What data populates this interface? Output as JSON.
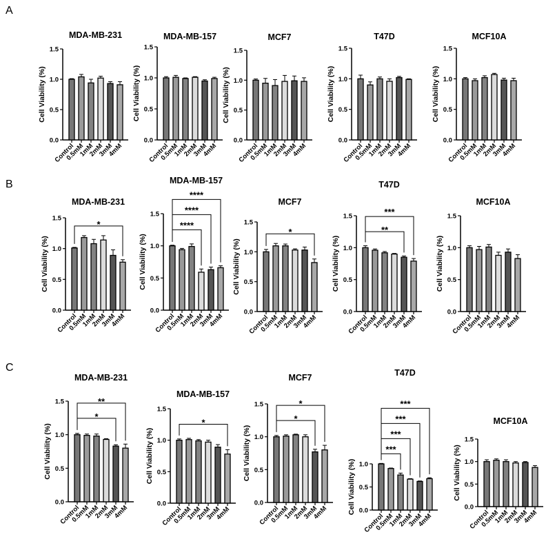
{
  "panel_labels": [
    "A",
    "B",
    "C"
  ],
  "colors": {
    "bars": [
      "#777777",
      "#9a9a9a",
      "#828282",
      "#dcdcdc",
      "#555555",
      "#a8a8a8"
    ],
    "axis": "#000000"
  },
  "chart_data": [
    {
      "type": "bar",
      "row": "A",
      "title": "MDA-MB-231",
      "ylabel": "Cell Viability (%)",
      "categories": [
        "Control",
        "0.5mM",
        "1mM",
        "2mM",
        "3mM",
        "4mM"
      ],
      "values": [
        1.0,
        1.04,
        0.94,
        1.02,
        0.93,
        0.91
      ],
      "errors": [
        0.01,
        0.04,
        0.06,
        0.03,
        0.03,
        0.05
      ],
      "ylim": [
        0,
        1.5
      ],
      "yticks": [
        "0.0",
        "0.5",
        "1.0",
        "1.5"
      ],
      "significance": []
    },
    {
      "type": "bar",
      "row": "A",
      "title": "MDA-MB-157",
      "ylabel": "Cell Viability (%)",
      "categories": [
        "Control",
        "0.5mM",
        "1mM",
        "2mM",
        "3mM",
        "4mM"
      ],
      "values": [
        1.0,
        1.01,
        0.99,
        1.01,
        0.95,
        0.99
      ],
      "errors": [
        0.02,
        0.03,
        0.01,
        0.01,
        0.02,
        0.02
      ],
      "ylim": [
        0,
        1.5
      ],
      "yticks": [
        "0.0",
        "0.5",
        "1.0",
        "1.5"
      ],
      "significance": []
    },
    {
      "type": "bar",
      "row": "A",
      "title": "MCF7",
      "ylabel": "Cell Viability (%)",
      "categories": [
        "Control",
        "0.5mM",
        "1mM",
        "2mM",
        "3mM",
        "4mM"
      ],
      "values": [
        1.0,
        0.95,
        0.91,
        0.98,
        0.99,
        0.98
      ],
      "errors": [
        0.02,
        0.08,
        0.1,
        0.1,
        0.08,
        0.06
      ],
      "ylim": [
        0,
        1.5
      ],
      "yticks": [
        "0.0",
        "0.5",
        "1.0",
        "1.5"
      ],
      "significance": []
    },
    {
      "type": "bar",
      "row": "A",
      "title": "T47D",
      "ylabel": "Cell Viability (%)",
      "categories": [
        "Control",
        "0.5mM",
        "1mM",
        "2mM",
        "3mM",
        "4mM"
      ],
      "values": [
        1.0,
        0.9,
        1.0,
        0.96,
        1.02,
        0.99
      ],
      "errors": [
        0.06,
        0.05,
        0.03,
        0.04,
        0.02,
        0.01
      ],
      "ylim": [
        0,
        1.5
      ],
      "yticks": [
        "0.0",
        "0.5",
        "1.0",
        "1.5"
      ],
      "significance": []
    },
    {
      "type": "bar",
      "row": "A",
      "title": "MCF10A",
      "ylabel": "Cell Viability (%)",
      "categories": [
        "Control",
        "0.5mM",
        "1mM",
        "2mM",
        "3mM",
        "4mM"
      ],
      "values": [
        1.0,
        0.97,
        1.02,
        1.07,
        0.98,
        0.97
      ],
      "errors": [
        0.02,
        0.03,
        0.03,
        0.02,
        0.03,
        0.04
      ],
      "ylim": [
        0,
        1.5
      ],
      "yticks": [
        "0.0",
        "0.5",
        "1.0",
        "1.5"
      ],
      "significance": []
    },
    {
      "type": "bar",
      "row": "B",
      "title": "MDA-MB-231",
      "ylabel": "Cell Viability (%)",
      "categories": [
        "Control",
        "0.5mM",
        "1mM",
        "2mM",
        "3mM",
        "4mM"
      ],
      "values": [
        1.01,
        1.18,
        1.08,
        1.14,
        0.89,
        0.78
      ],
      "errors": [
        0.01,
        0.03,
        0.07,
        0.07,
        0.09,
        0.04
      ],
      "ylim": [
        0,
        1.5
      ],
      "yticks": [
        "0.0",
        "0.5",
        "1.0",
        "1.5"
      ],
      "significance": [
        {
          "from": "Control",
          "to": "4mM",
          "label": "*"
        }
      ]
    },
    {
      "type": "bar",
      "row": "B",
      "title": "MDA-MB-157",
      "ylabel": "Cell Viability (%)",
      "categories": [
        "Control",
        "0.5mM",
        "1mM",
        "2mM",
        "3mM",
        "4mM"
      ],
      "values": [
        1.0,
        0.94,
        0.99,
        0.59,
        0.63,
        0.66
      ],
      "errors": [
        0.01,
        0.02,
        0.04,
        0.05,
        0.04,
        0.03
      ],
      "ylim": [
        0,
        1.5
      ],
      "yticks": [
        "0.0",
        "0.5",
        "1.0",
        "1.5"
      ],
      "significance": [
        {
          "from": "Control",
          "to": "2mM",
          "label": "****"
        },
        {
          "from": "Control",
          "to": "3mM",
          "label": "****"
        },
        {
          "from": "Control",
          "to": "4mM",
          "label": "****"
        }
      ]
    },
    {
      "type": "bar",
      "row": "B",
      "title": "MCF7",
      "ylabel": "Cell Viability (%)",
      "categories": [
        "Control",
        "0.5mM",
        "1mM",
        "2mM",
        "3mM",
        "4mM"
      ],
      "values": [
        1.0,
        1.1,
        1.1,
        1.03,
        1.03,
        0.82
      ],
      "errors": [
        0.04,
        0.04,
        0.03,
        0.02,
        0.05,
        0.06
      ],
      "ylim": [
        0,
        1.5
      ],
      "yticks": [
        "0.0",
        "0.5",
        "1.0",
        "1.5"
      ],
      "significance": [
        {
          "from": "Control",
          "to": "4mM",
          "label": "*"
        }
      ]
    },
    {
      "type": "bar",
      "row": "B",
      "title": "T47D",
      "ylabel": "Cell Viability (%)",
      "categories": [
        "Control",
        "0.5mM",
        "1mM",
        "2mM",
        "3mM",
        "4mM"
      ],
      "values": [
        1.0,
        0.96,
        0.92,
        0.9,
        0.85,
        0.79
      ],
      "errors": [
        0.03,
        0.02,
        0.02,
        0.01,
        0.02,
        0.04
      ],
      "ylim": [
        0,
        1.5
      ],
      "yticks": [
        "0.0",
        "0.5",
        "1.0",
        "1.5"
      ],
      "significance": [
        {
          "from": "Control",
          "to": "3mM",
          "label": "**"
        },
        {
          "from": "Control",
          "to": "4mM",
          "label": "***"
        }
      ]
    },
    {
      "type": "bar",
      "row": "B",
      "title": "MCF10A",
      "ylabel": "Cell Viability (%)",
      "categories": [
        "Control",
        "0.5mM",
        "1mM",
        "2mM",
        "3mM",
        "4mM"
      ],
      "values": [
        1.0,
        0.97,
        1.01,
        0.88,
        0.93,
        0.83
      ],
      "errors": [
        0.03,
        0.05,
        0.04,
        0.05,
        0.05,
        0.06
      ],
      "ylim": [
        0,
        1.5
      ],
      "yticks": [
        "0.0",
        "0.5",
        "1.0",
        "1.5"
      ],
      "significance": []
    },
    {
      "type": "bar",
      "row": "C",
      "title": "MDA-MB-231",
      "ylabel": "Cell Viability (%)",
      "categories": [
        "Control",
        "0.5mM",
        "1mM",
        "2mM",
        "3mM",
        "4mM"
      ],
      "values": [
        1.0,
        0.99,
        0.98,
        0.93,
        0.83,
        0.8
      ],
      "errors": [
        0.02,
        0.02,
        0.03,
        0.01,
        0.02,
        0.06
      ],
      "ylim": [
        0,
        1.5
      ],
      "yticks": [
        "0.0",
        "0.5",
        "1.0",
        "1.5"
      ],
      "significance": [
        {
          "from": "Control",
          "to": "3mM",
          "label": "*"
        },
        {
          "from": "Control",
          "to": "4mM",
          "label": "**"
        }
      ]
    },
    {
      "type": "bar",
      "row": "C",
      "title": "MDA-MB-157",
      "ylabel": "Cell Viability (%)",
      "categories": [
        "Control",
        "0.5mM",
        "1mM",
        "2mM",
        "3mM",
        "4mM"
      ],
      "values": [
        1.0,
        1.01,
        0.99,
        0.97,
        0.89,
        0.78
      ],
      "errors": [
        0.02,
        0.02,
        0.02,
        0.03,
        0.04,
        0.07
      ],
      "ylim": [
        0,
        1.5
      ],
      "yticks": [
        "0.0",
        "0.5",
        "1.0",
        "1.5"
      ],
      "significance": [
        {
          "from": "Control",
          "to": "4mM",
          "label": "*"
        }
      ]
    },
    {
      "type": "bar",
      "row": "C",
      "title": "MCF7",
      "ylabel": "Cell Viability (%)",
      "categories": [
        "Control",
        "0.5mM",
        "1mM",
        "2mM",
        "3mM",
        "4mM"
      ],
      "values": [
        1.0,
        1.01,
        1.03,
        1.0,
        0.77,
        0.8
      ],
      "errors": [
        0.02,
        0.02,
        0.01,
        0.03,
        0.04,
        0.07
      ],
      "ylim": [
        0,
        1.5
      ],
      "yticks": [
        "0.0",
        "0.5",
        "1.0",
        "1.5"
      ],
      "significance": [
        {
          "from": "Control",
          "to": "3mM",
          "label": "*"
        },
        {
          "from": "Control",
          "to": "4mM",
          "label": "*"
        }
      ]
    },
    {
      "type": "bar",
      "row": "C",
      "title": "T47D",
      "ylabel": "Cell Viability (%)",
      "categories": [
        "Control",
        "0.5mM",
        "1mM",
        "2mM",
        "3mM",
        "4mM"
      ],
      "values": [
        1.0,
        0.9,
        0.76,
        0.67,
        0.62,
        0.68
      ],
      "errors": [
        0.01,
        0.01,
        0.04,
        0.01,
        0.01,
        0.02
      ],
      "ylim": [
        0,
        1.0
      ],
      "yticks": [
        "0.0",
        "0.5",
        "1.0"
      ],
      "significance": [
        {
          "from": "Control",
          "to": "1mM",
          "label": "***"
        },
        {
          "from": "Control",
          "to": "2mM",
          "label": "***"
        },
        {
          "from": "Control",
          "to": "3mM",
          "label": "***"
        },
        {
          "from": "Control",
          "to": "4mM",
          "label": "***"
        }
      ]
    },
    {
      "type": "bar",
      "row": "C",
      "title": "MCF10A",
      "ylabel": "Cell Viability (%)",
      "categories": [
        "Control",
        "0.5mM",
        "1mM",
        "2mM",
        "3mM",
        "4mM"
      ],
      "values": [
        1.0,
        1.03,
        1.0,
        0.97,
        0.98,
        0.87
      ],
      "errors": [
        0.04,
        0.03,
        0.04,
        0.03,
        0.02,
        0.04
      ],
      "ylim": [
        0,
        1.5
      ],
      "yticks": [
        "0.0",
        "0.5",
        "1.0",
        "1.5"
      ],
      "significance": []
    }
  ]
}
